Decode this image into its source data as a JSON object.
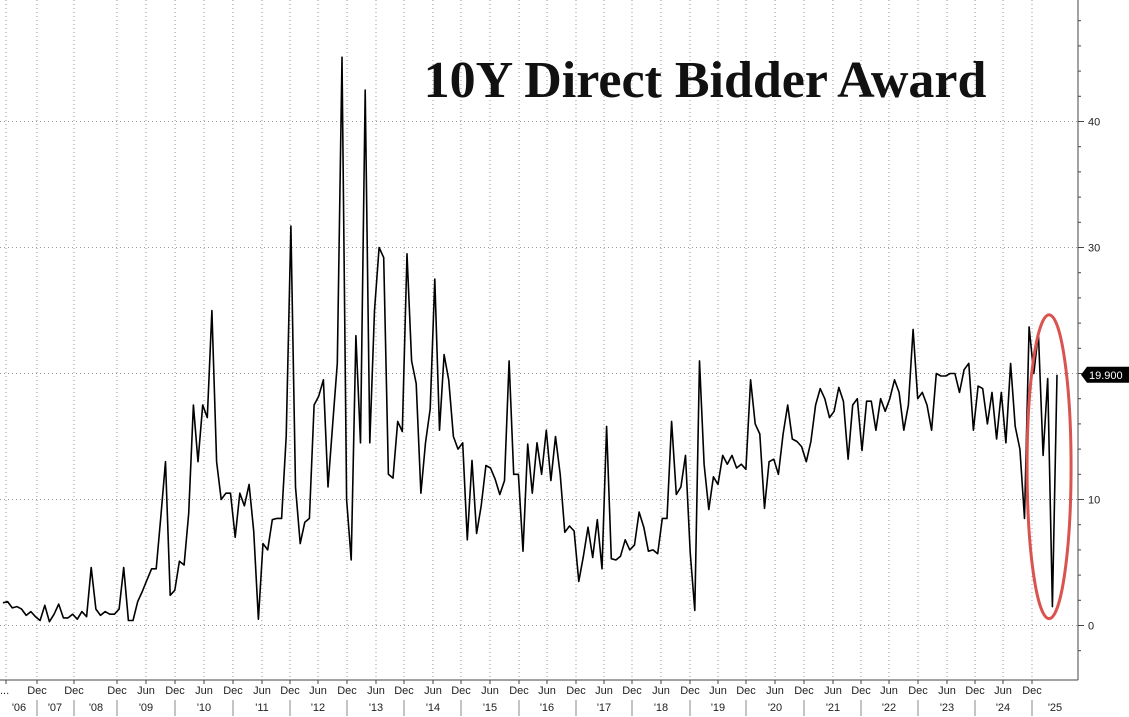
{
  "chart_data": {
    "type": "line",
    "title": "10Y Direct Bidder Award",
    "series": [
      {
        "values": [
          1.8,
          1.9,
          1.4,
          1.5,
          1.3,
          0.8,
          1.1,
          0.7,
          0.4,
          1.6,
          0.3,
          0.9,
          1.7,
          0.6,
          0.6,
          0.9,
          0.5,
          1.1,
          0.7,
          4.6,
          1.3,
          0.8,
          1.1,
          0.9,
          0.9,
          1.3,
          4.6,
          0.4,
          0.4,
          1.9,
          2.7,
          3.6,
          4.5,
          4.5,
          8.7,
          13.0,
          2.4,
          2.8,
          5.1,
          4.8,
          8.9,
          17.5,
          13.0,
          17.5,
          16.5,
          25.0,
          13.0,
          10.0,
          10.5,
          10.5,
          7.0,
          10.5,
          9.5,
          11.2,
          7.5,
          0.5,
          6.5,
          6.0,
          8.4,
          8.5,
          8.5,
          15.0,
          31.7,
          11.0,
          6.5,
          8.2,
          8.5,
          17.5,
          18.2,
          19.5,
          11.0,
          16.0,
          20.8,
          45.1,
          10.0,
          5.2,
          23.0,
          14.5,
          42.5,
          14.5,
          25.0,
          30.0,
          29.2,
          12.0,
          11.7,
          16.2,
          15.4,
          29.5,
          21.0,
          19.2,
          10.5,
          14.5,
          17.2,
          27.5,
          15.5,
          21.5,
          19.5,
          15.0,
          14.0,
          14.5,
          6.8,
          13.1,
          7.3,
          9.5,
          12.7,
          12.5,
          11.6,
          10.4,
          11.5,
          21.0,
          12.0,
          12.0,
          5.9,
          14.4,
          10.5,
          14.5,
          12.0,
          15.5,
          11.5,
          15.0,
          12.0,
          7.4,
          7.9,
          7.5,
          3.5,
          5.5,
          7.8,
          5.4,
          8.4,
          4.5,
          15.8,
          5.3,
          5.2,
          5.5,
          6.8,
          6.0,
          6.4,
          9.0,
          7.8,
          5.9,
          6.0,
          5.7,
          8.5,
          8.5,
          16.2,
          10.4,
          11.0,
          13.5,
          5.8,
          1.2,
          21.0,
          12.8,
          9.2,
          11.8,
          11.2,
          13.5,
          12.8,
          13.5,
          12.5,
          12.8,
          12.4,
          19.5,
          16.0,
          15.2,
          9.3,
          13.0,
          13.2,
          12.0,
          15.2,
          17.5,
          14.8,
          14.6,
          14.2,
          13.0,
          14.6,
          17.5,
          18.8,
          18.0,
          16.5,
          17.0,
          18.9,
          17.8,
          13.2,
          17.5,
          18.0,
          13.9,
          17.8,
          17.8,
          15.5,
          18.0,
          17.0,
          18.0,
          19.5,
          18.5,
          15.5,
          17.5,
          23.5,
          18.0,
          18.5,
          17.5,
          15.5,
          20.0,
          19.8,
          19.8,
          20.0,
          20.0,
          18.5,
          20.3,
          20.8,
          15.5,
          19.0,
          18.8,
          16.0,
          18.5,
          14.8,
          18.5,
          14.5,
          20.8,
          15.8,
          14.0,
          8.5,
          23.7,
          20.0,
          23.2,
          13.5,
          19.6,
          1.5,
          19.9
        ]
      }
    ],
    "x_range": [
      "'06",
      "'25"
    ],
    "ylim": [
      -3.5,
      49.5
    ],
    "y_ticks": [
      "0",
      "10",
      "20",
      "30",
      "40"
    ],
    "last_value_label": "19.900",
    "x_month_labels": [
      "...",
      "Dec",
      "Dec",
      "Dec",
      "Jun",
      "Dec",
      "Jun",
      "Dec",
      "Jun",
      "Dec",
      "Jun",
      "Dec",
      "Jun",
      "Dec",
      "Jun",
      "Dec",
      "Jun",
      "Dec",
      "Jun",
      "Dec",
      "Jun",
      "Dec",
      "Jun",
      "Dec",
      "Jun",
      "Dec",
      "Jun",
      "Dec",
      "Jun",
      "Dec",
      "Jun",
      "Dec",
      "Jun",
      "Dec",
      "Jun",
      "Dec",
      "Jun",
      "Dec"
    ],
    "x_year_labels": [
      "'06",
      "'07",
      "'08",
      "'09",
      "'10",
      "'11",
      "'12",
      "'13",
      "'14",
      "'15",
      "'16",
      "'17",
      "'18",
      "'19",
      "'20",
      "'21",
      "'22",
      "'23",
      "'24",
      "'25"
    ],
    "grid": true,
    "line_color": "#000000",
    "highlight_color": "#d9534f",
    "last_label_bg": "#000000"
  }
}
